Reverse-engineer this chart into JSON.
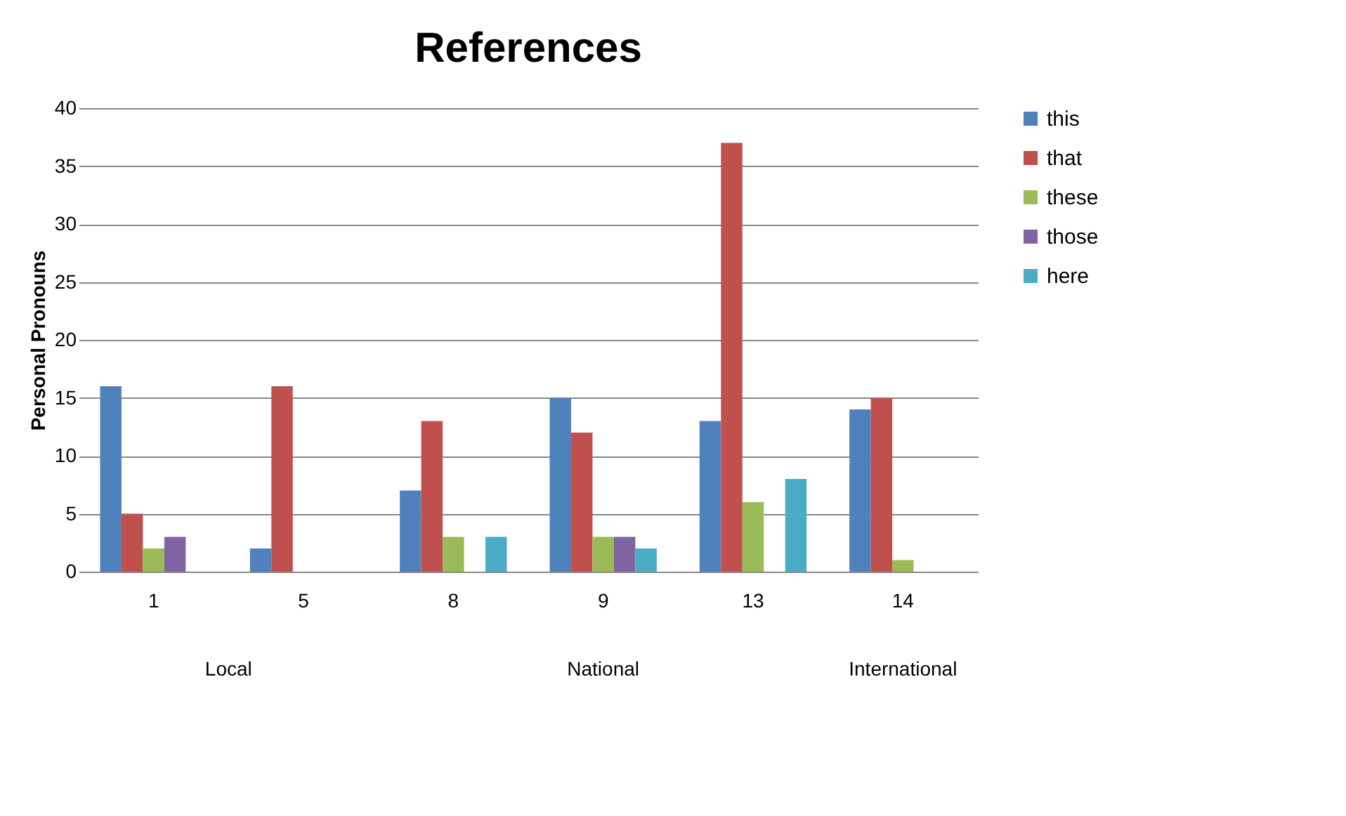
{
  "chart_data": {
    "type": "bar",
    "title": "References",
    "ylabel": "Personal Pronouns",
    "categories": [
      "1",
      "5",
      "8",
      "9",
      "13",
      "14"
    ],
    "series": [
      {
        "name": "this",
        "color": "#4f81bd",
        "values": [
          16,
          2,
          7,
          15,
          13,
          14
        ]
      },
      {
        "name": "that",
        "color": "#c0504d",
        "values": [
          5,
          16,
          13,
          12,
          37,
          15
        ]
      },
      {
        "name": "these",
        "color": "#9bbb59",
        "values": [
          2,
          0,
          3,
          3,
          6,
          1
        ]
      },
      {
        "name": "those",
        "color": "#8064a2",
        "values": [
          3,
          0,
          0,
          3,
          0,
          0
        ]
      },
      {
        "name": "here",
        "color": "#4bacc6",
        "values": [
          0,
          0,
          3,
          2,
          8,
          0
        ]
      }
    ],
    "annotations": [
      "Local",
      "National",
      "International"
    ],
    "ylim": [
      0,
      40
    ],
    "yticks": [
      0,
      5,
      10,
      15,
      20,
      25,
      30,
      35,
      40
    ],
    "grid": "y",
    "legend": "right"
  }
}
